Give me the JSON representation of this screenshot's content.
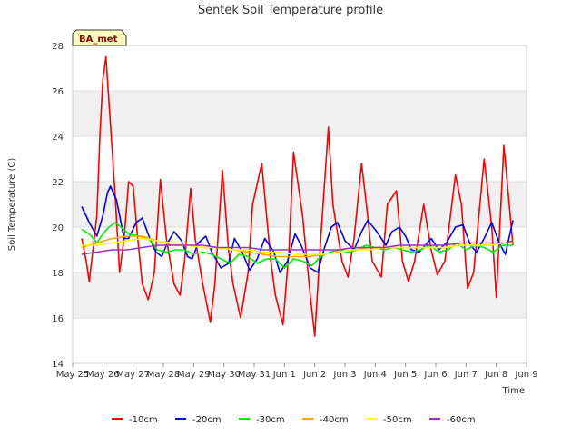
{
  "chart_data": {
    "type": "line",
    "title": "Sentek Soil Temperature profile",
    "xlabel": "Time",
    "ylabel": "Soil Temperature (C)",
    "station_tag": "BA_met",
    "ylim": [
      14,
      28
    ],
    "yticks": [
      14,
      16,
      18,
      20,
      22,
      24,
      26,
      28
    ],
    "x_ticks": [
      "May 25",
      "May 26",
      "May 27",
      "May 28",
      "May 29",
      "May 30",
      "May 31",
      "Jun 1",
      "Jun 2",
      "Jun 3",
      "Jun 4",
      "Jun 5",
      "Jun 6",
      "Jun 7",
      "Jun 8",
      "Jun 9"
    ],
    "x_unit": "day offset from May 25 00:00",
    "xlim": [
      0,
      15
    ],
    "grid": true,
    "legend_position": "bottom",
    "series": [
      {
        "name": "-10cm",
        "color": "#ff0000",
        "x": [
          0.3,
          0.45,
          0.55,
          0.8,
          0.9,
          1.0,
          1.1,
          1.25,
          1.4,
          1.55,
          1.7,
          1.85,
          2.0,
          2.15,
          2.3,
          2.5,
          2.7,
          2.9,
          3.1,
          3.35,
          3.55,
          3.7,
          3.9,
          4.05,
          4.3,
          4.55,
          4.7,
          4.95,
          5.15,
          5.3,
          5.55,
          5.8,
          5.95,
          6.25,
          6.55,
          6.7,
          6.95,
          7.15,
          7.3,
          7.6,
          7.85,
          8.0,
          8.2,
          8.45,
          8.6,
          8.9,
          9.1,
          9.3,
          9.55,
          9.75,
          9.9,
          10.2,
          10.4,
          10.7,
          10.9,
          11.1,
          11.3,
          11.6,
          11.85,
          12.05,
          12.3,
          12.65,
          12.85,
          13.05,
          13.25,
          13.6,
          13.85,
          14.0,
          14.25,
          14.55
        ],
        "y": [
          19.5,
          18.5,
          17.6,
          20.5,
          24.0,
          26.5,
          27.5,
          24.5,
          21.5,
          18.0,
          19.5,
          22.0,
          21.8,
          19.5,
          17.5,
          16.8,
          18.0,
          22.1,
          19.5,
          17.5,
          17.0,
          18.5,
          21.7,
          19.5,
          17.5,
          15.8,
          17.5,
          22.5,
          19.0,
          17.5,
          16.0,
          18.0,
          21.0,
          22.8,
          18.5,
          17.0,
          15.7,
          19.0,
          23.3,
          20.5,
          17.0,
          15.2,
          19.5,
          24.4,
          21.0,
          18.5,
          17.8,
          19.5,
          22.8,
          20.5,
          18.5,
          17.8,
          21.0,
          21.6,
          18.5,
          17.6,
          18.5,
          21.0,
          19.0,
          17.9,
          18.5,
          22.3,
          21.0,
          17.3,
          18.0,
          23.0,
          20.0,
          16.9,
          23.6,
          19.2
        ]
      },
      {
        "name": "-20cm",
        "color": "#0000ff",
        "x": [
          0.3,
          0.55,
          0.8,
          1.0,
          1.15,
          1.25,
          1.45,
          1.7,
          1.85,
          2.1,
          2.3,
          2.55,
          2.75,
          2.95,
          3.1,
          3.35,
          3.6,
          3.8,
          3.95,
          4.15,
          4.4,
          4.6,
          4.9,
          5.15,
          5.35,
          5.6,
          5.85,
          6.1,
          6.35,
          6.65,
          6.85,
          7.1,
          7.35,
          7.55,
          7.85,
          8.1,
          8.3,
          8.55,
          8.75,
          9.0,
          9.3,
          9.55,
          9.75,
          10.05,
          10.35,
          10.55,
          10.8,
          11.0,
          11.2,
          11.45,
          11.65,
          11.85,
          12.1,
          12.35,
          12.65,
          12.9,
          13.15,
          13.35,
          13.6,
          13.85,
          14.1,
          14.3,
          14.55
        ],
        "y": [
          20.9,
          20.2,
          19.6,
          20.5,
          21.5,
          21.8,
          21.2,
          19.5,
          19.5,
          20.2,
          20.4,
          19.5,
          18.9,
          18.7,
          19.2,
          19.8,
          19.4,
          18.7,
          18.6,
          19.3,
          19.6,
          18.9,
          18.2,
          18.4,
          19.5,
          18.9,
          18.1,
          18.6,
          19.5,
          18.9,
          18.0,
          18.5,
          19.7,
          19.2,
          18.2,
          18.0,
          19.0,
          20.0,
          20.2,
          19.4,
          19.0,
          19.8,
          20.3,
          19.8,
          19.2,
          19.8,
          20.0,
          19.6,
          19.0,
          18.9,
          19.2,
          19.5,
          19.0,
          19.3,
          20.0,
          20.1,
          19.2,
          18.9,
          19.5,
          20.2,
          19.3,
          18.8,
          20.3
        ]
      },
      {
        "name": "-30cm",
        "color": "#00ee00",
        "x": [
          0.3,
          0.55,
          0.8,
          1.0,
          1.2,
          1.4,
          1.6,
          1.85,
          2.2,
          2.5,
          2.8,
          3.1,
          3.4,
          3.7,
          4.0,
          4.3,
          4.6,
          4.9,
          5.2,
          5.5,
          5.8,
          6.1,
          6.4,
          6.7,
          7.0,
          7.3,
          7.6,
          7.9,
          8.2,
          8.5,
          8.8,
          9.1,
          9.4,
          9.7,
          10.0,
          10.3,
          10.6,
          10.9,
          11.2,
          11.5,
          11.8,
          12.1,
          12.4,
          12.7,
          13.0,
          13.3,
          13.6,
          13.9,
          14.2,
          14.55
        ],
        "y": [
          19.9,
          19.7,
          19.3,
          19.7,
          20.0,
          20.2,
          20.0,
          19.7,
          19.6,
          19.5,
          19.0,
          18.9,
          19.0,
          19.0,
          18.8,
          18.9,
          18.8,
          18.6,
          18.4,
          18.8,
          18.7,
          18.4,
          18.6,
          18.6,
          18.2,
          18.6,
          18.5,
          18.3,
          18.7,
          18.9,
          19.0,
          18.9,
          19.0,
          19.2,
          19.1,
          19.0,
          19.1,
          19.0,
          18.9,
          19.0,
          19.2,
          18.9,
          19.0,
          19.3,
          19.0,
          19.2,
          19.1,
          18.9,
          19.2,
          19.2
        ]
      },
      {
        "name": "-40cm",
        "color": "#ffa500",
        "x": [
          0.3,
          0.8,
          1.3,
          1.8,
          2.3,
          2.8,
          3.3,
          3.8,
          4.3,
          4.8,
          5.3,
          5.8,
          6.3,
          6.8,
          7.3,
          7.8,
          8.3,
          8.8,
          9.3,
          9.8,
          10.3,
          10.8,
          11.3,
          11.8,
          12.3,
          12.8,
          13.3,
          13.8,
          14.3,
          14.55
        ],
        "y": [
          19.1,
          19.3,
          19.5,
          19.6,
          19.6,
          19.4,
          19.2,
          19.2,
          19.1,
          19.1,
          19.0,
          18.9,
          18.8,
          18.7,
          18.7,
          18.7,
          18.8,
          18.9,
          19.0,
          19.1,
          19.1,
          19.1,
          19.1,
          19.1,
          19.1,
          19.2,
          19.2,
          19.2,
          19.3,
          19.3
        ]
      },
      {
        "name": "-50cm",
        "color": "#ffff00",
        "x": [
          0.3,
          0.8,
          1.3,
          1.8,
          2.3,
          2.8,
          3.3,
          3.8,
          4.3,
          4.8,
          5.3,
          5.8,
          6.3,
          6.8,
          7.3,
          7.8,
          8.3,
          8.8,
          9.3,
          9.8,
          10.3,
          10.8,
          11.3,
          11.8,
          12.3,
          12.8,
          13.3,
          13.8,
          14.3,
          14.55
        ],
        "y": [
          19.2,
          19.2,
          19.3,
          19.4,
          19.5,
          19.4,
          19.3,
          19.2,
          19.1,
          19.1,
          19.0,
          19.0,
          18.9,
          18.9,
          18.8,
          18.8,
          18.8,
          18.9,
          19.0,
          19.0,
          19.1,
          19.1,
          19.1,
          19.1,
          19.1,
          19.2,
          19.2,
          19.2,
          19.3,
          19.3
        ]
      },
      {
        "name": "-60cm",
        "color": "#9932cc",
        "x": [
          0.3,
          0.8,
          1.3,
          1.8,
          2.3,
          2.8,
          3.3,
          3.8,
          4.3,
          4.8,
          5.3,
          5.8,
          6.3,
          6.8,
          7.3,
          7.8,
          8.3,
          8.8,
          9.3,
          9.8,
          10.3,
          10.8,
          11.3,
          11.8,
          12.3,
          12.8,
          13.3,
          13.8,
          14.3,
          14.55
        ],
        "y": [
          18.8,
          18.9,
          19.0,
          19.0,
          19.1,
          19.2,
          19.2,
          19.2,
          19.2,
          19.1,
          19.1,
          19.1,
          19.0,
          19.0,
          19.0,
          19.0,
          19.0,
          19.0,
          19.1,
          19.1,
          19.1,
          19.2,
          19.2,
          19.2,
          19.2,
          19.3,
          19.3,
          19.3,
          19.3,
          19.4
        ]
      }
    ]
  }
}
